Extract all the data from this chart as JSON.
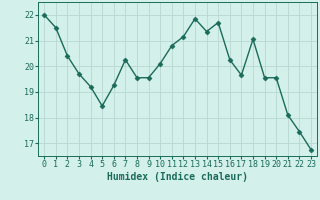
{
  "x": [
    0,
    1,
    2,
    3,
    4,
    5,
    6,
    7,
    8,
    9,
    10,
    11,
    12,
    13,
    14,
    15,
    16,
    17,
    18,
    19,
    20,
    21,
    22,
    23
  ],
  "y": [
    22.0,
    21.5,
    20.4,
    19.7,
    19.2,
    18.45,
    19.25,
    20.25,
    19.55,
    19.55,
    20.1,
    20.8,
    21.15,
    21.85,
    21.35,
    21.7,
    20.25,
    19.65,
    21.05,
    19.55,
    19.55,
    18.1,
    17.45,
    16.75
  ],
  "line_color": "#1a6b5a",
  "marker": "D",
  "markersize": 2.5,
  "linewidth": 1.0,
  "bg_color": "#d4f0eb",
  "grid_color": "#b8d8d2",
  "xlabel": "Humidex (Indice chaleur)",
  "xlabel_fontsize": 7,
  "tick_fontsize": 6,
  "ylim": [
    16.5,
    22.5
  ],
  "yticks": [
    17,
    18,
    19,
    20,
    21,
    22
  ],
  "xticks": [
    0,
    1,
    2,
    3,
    4,
    5,
    6,
    7,
    8,
    9,
    10,
    11,
    12,
    13,
    14,
    15,
    16,
    17,
    18,
    19,
    20,
    21,
    22,
    23
  ],
  "xlim": [
    -0.5,
    23.5
  ]
}
